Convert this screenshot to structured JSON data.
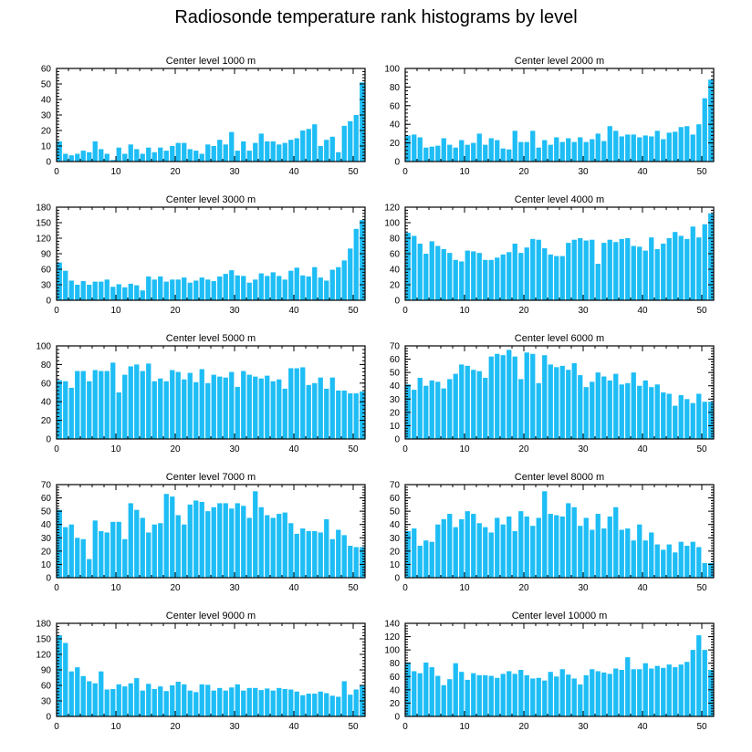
{
  "title": "Radiosonde temperature rank histograms by level",
  "bar_color": "#1ebdf5",
  "chart_data": [
    {
      "type": "bar",
      "title": "Center level 1000 m",
      "xlim": [
        0,
        52
      ],
      "ylim": [
        0,
        60
      ],
      "xticks": [
        0,
        10,
        20,
        30,
        40,
        50
      ],
      "yticks": [
        0,
        10,
        20,
        30,
        40,
        50,
        60
      ],
      "values": [
        13,
        5,
        4,
        5,
        7,
        6,
        13,
        8,
        5,
        1,
        9,
        5,
        11,
        8,
        5,
        9,
        6,
        9,
        7,
        10,
        12,
        12,
        8,
        7,
        5,
        11,
        10,
        14,
        11,
        19,
        7,
        13,
        7,
        12,
        18,
        13,
        13,
        11,
        12,
        14,
        15,
        20,
        21,
        24,
        10,
        14,
        16,
        6,
        23,
        26,
        30,
        51
      ]
    },
    {
      "type": "bar",
      "title": "Center level 2000 m",
      "xlim": [
        0,
        52
      ],
      "ylim": [
        0,
        100
      ],
      "xticks": [
        0,
        10,
        20,
        30,
        40,
        50
      ],
      "yticks": [
        0,
        20,
        40,
        60,
        80,
        100
      ],
      "values": [
        28,
        29,
        26,
        15,
        16,
        17,
        25,
        18,
        15,
        23,
        18,
        20,
        30,
        18,
        25,
        23,
        14,
        13,
        33,
        21,
        21,
        33,
        15,
        23,
        18,
        26,
        21,
        25,
        21,
        26,
        21,
        24,
        30,
        22,
        38,
        33,
        27,
        29,
        29,
        26,
        28,
        27,
        33,
        24,
        31,
        32,
        37,
        38,
        29,
        40,
        68,
        88
      ]
    },
    {
      "type": "bar",
      "title": "Center level 3000 m",
      "xlim": [
        0,
        52
      ],
      "ylim": [
        0,
        180
      ],
      "xticks": [
        0,
        10,
        20,
        30,
        40,
        50
      ],
      "yticks": [
        0,
        30,
        60,
        90,
        120,
        150,
        180
      ],
      "values": [
        73,
        57,
        38,
        30,
        37,
        30,
        36,
        36,
        40,
        26,
        31,
        25,
        32,
        29,
        19,
        46,
        40,
        46,
        36,
        40,
        40,
        44,
        34,
        38,
        44,
        40,
        37,
        46,
        51,
        58,
        48,
        47,
        34,
        40,
        52,
        47,
        54,
        47,
        40,
        57,
        63,
        48,
        46,
        64,
        44,
        38,
        59,
        64,
        77,
        100,
        138,
        155
      ]
    },
    {
      "type": "bar",
      "title": "Center level 4000 m",
      "xlim": [
        0,
        52
      ],
      "ylim": [
        0,
        120
      ],
      "xticks": [
        0,
        10,
        20,
        30,
        40,
        50
      ],
      "yticks": [
        0,
        20,
        40,
        60,
        80,
        100,
        120
      ],
      "values": [
        87,
        83,
        73,
        60,
        76,
        70,
        66,
        61,
        52,
        50,
        64,
        63,
        61,
        52,
        52,
        55,
        59,
        62,
        73,
        61,
        68,
        79,
        78,
        67,
        59,
        57,
        57,
        74,
        78,
        80,
        77,
        78,
        47,
        74,
        78,
        75,
        79,
        80,
        70,
        69,
        64,
        81,
        66,
        73,
        80,
        88,
        83,
        79,
        95,
        81,
        98,
        112
      ]
    },
    {
      "type": "bar",
      "title": "Center level 5000 m",
      "xlim": [
        0,
        52
      ],
      "ylim": [
        0,
        100
      ],
      "xticks": [
        0,
        10,
        20,
        30,
        40,
        50
      ],
      "yticks": [
        0,
        20,
        40,
        60,
        80,
        100
      ],
      "values": [
        63,
        62,
        55,
        73,
        73,
        62,
        74,
        73,
        73,
        82,
        50,
        69,
        78,
        80,
        73,
        81,
        62,
        65,
        62,
        74,
        72,
        64,
        71,
        61,
        75,
        60,
        69,
        67,
        66,
        72,
        56,
        73,
        69,
        67,
        65,
        68,
        62,
        64,
        54,
        76,
        76,
        77,
        58,
        60,
        66,
        54,
        66,
        52,
        52,
        49,
        49,
        51
      ]
    },
    {
      "type": "bar",
      "title": "Center level 6000 m",
      "xlim": [
        0,
        52
      ],
      "ylim": [
        0,
        70
      ],
      "xticks": [
        0,
        10,
        20,
        30,
        40,
        50
      ],
      "yticks": [
        0,
        10,
        20,
        30,
        40,
        50,
        60,
        70
      ],
      "values": [
        41,
        37,
        46,
        40,
        44,
        43,
        38,
        45,
        49,
        56,
        55,
        52,
        51,
        46,
        62,
        64,
        63,
        67,
        62,
        45,
        65,
        64,
        42,
        63,
        56,
        54,
        55,
        52,
        57,
        48,
        39,
        43,
        50,
        47,
        44,
        49,
        41,
        42,
        50,
        40,
        44,
        39,
        41,
        35,
        34,
        25,
        33,
        30,
        27,
        34,
        28,
        28
      ]
    },
    {
      "type": "bar",
      "title": "Center level 7000 m",
      "xlim": [
        0,
        52
      ],
      "ylim": [
        0,
        70
      ],
      "xticks": [
        0,
        10,
        20,
        30,
        40,
        50
      ],
      "yticks": [
        0,
        10,
        20,
        30,
        40,
        50,
        60,
        70
      ],
      "values": [
        51,
        38,
        40,
        30,
        29,
        14,
        43,
        35,
        34,
        42,
        42,
        29,
        56,
        51,
        45,
        34,
        40,
        41,
        63,
        61,
        47,
        40,
        55,
        58,
        57,
        50,
        53,
        56,
        56,
        52,
        56,
        54,
        45,
        65,
        53,
        47,
        45,
        48,
        49,
        41,
        33,
        37,
        35,
        35,
        34,
        44,
        29,
        36,
        32,
        24,
        23,
        23
      ]
    },
    {
      "type": "bar",
      "title": "Center level 8000 m",
      "xlim": [
        0,
        52
      ],
      "ylim": [
        0,
        70
      ],
      "xticks": [
        0,
        10,
        20,
        30,
        40,
        50
      ],
      "yticks": [
        0,
        10,
        20,
        30,
        40,
        50,
        60,
        70
      ],
      "values": [
        35,
        37,
        24,
        28,
        27,
        40,
        44,
        48,
        38,
        44,
        50,
        48,
        41,
        38,
        34,
        45,
        40,
        46,
        35,
        50,
        46,
        39,
        45,
        65,
        48,
        47,
        46,
        56,
        53,
        39,
        45,
        36,
        48,
        37,
        46,
        53,
        36,
        37,
        28,
        40,
        28,
        34,
        25,
        21,
        25,
        19,
        27,
        24,
        27,
        23,
        11,
        11
      ]
    },
    {
      "type": "bar",
      "title": "Center level 9000 m",
      "xlim": [
        0,
        52
      ],
      "ylim": [
        0,
        180
      ],
      "xticks": [
        0,
        10,
        20,
        30,
        40,
        50
      ],
      "yticks": [
        0,
        30,
        60,
        90,
        120,
        150,
        180
      ],
      "values": [
        157,
        142,
        87,
        95,
        78,
        68,
        64,
        87,
        52,
        53,
        62,
        58,
        64,
        74,
        50,
        63,
        53,
        58,
        49,
        60,
        67,
        62,
        50,
        47,
        62,
        61,
        50,
        55,
        50,
        56,
        62,
        50,
        55,
        55,
        51,
        54,
        50,
        55,
        53,
        52,
        48,
        41,
        44,
        44,
        48,
        45,
        40,
        38,
        68,
        42,
        52,
        60
      ]
    },
    {
      "type": "bar",
      "title": "Center level 10000 m",
      "xlim": [
        0,
        52
      ],
      "ylim": [
        0,
        140
      ],
      "xticks": [
        0,
        10,
        20,
        30,
        40,
        50
      ],
      "yticks": [
        0,
        20,
        40,
        60,
        80,
        100,
        120,
        140
      ],
      "values": [
        81,
        68,
        65,
        81,
        74,
        61,
        47,
        56,
        80,
        67,
        55,
        65,
        62,
        62,
        61,
        58,
        64,
        68,
        64,
        70,
        62,
        57,
        58,
        54,
        67,
        60,
        71,
        63,
        57,
        48,
        62,
        71,
        68,
        66,
        64,
        72,
        70,
        89,
        71,
        71,
        80,
        72,
        76,
        73,
        78,
        74,
        78,
        82,
        100,
        122,
        100,
        70
      ]
    }
  ]
}
